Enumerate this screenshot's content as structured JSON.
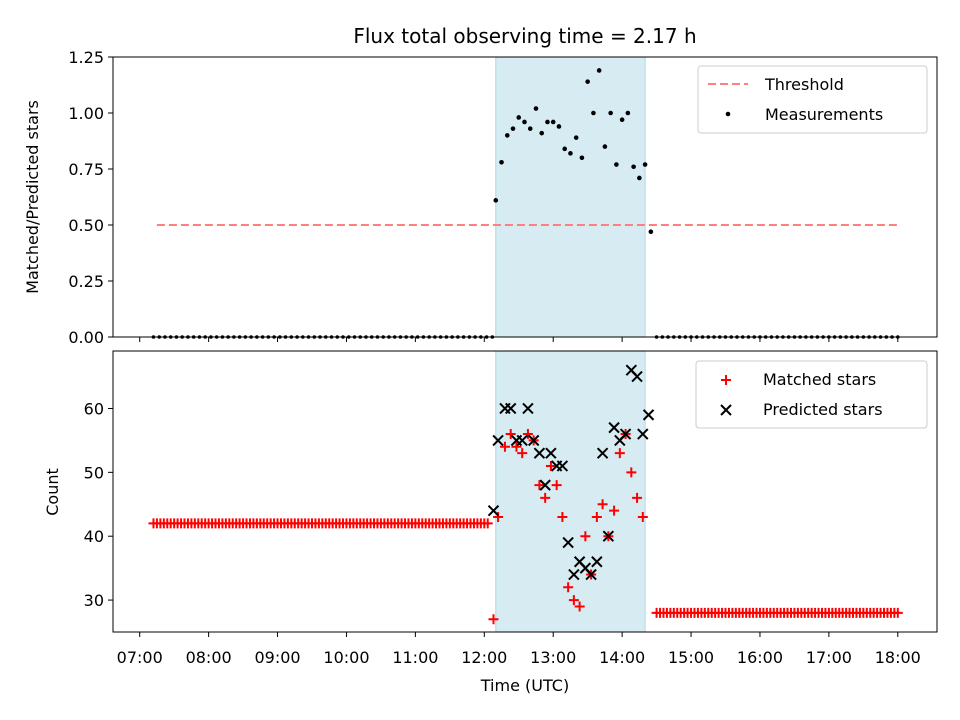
{
  "title": "Flux total observing time = 2.17 h",
  "colors": {
    "threshold": "#ff7f7f",
    "measurement": "#000000",
    "matched": "#ff0000",
    "predicted": "#000000",
    "shade": "#add8e6"
  },
  "chart_data": [
    {
      "type": "scatter",
      "name": "ratio-panel",
      "ylabel": "Matched/Predicted stars",
      "ylim": [
        0,
        1.25
      ],
      "yticks": [
        "0.00",
        "0.25",
        "0.50",
        "0.75",
        "1.00",
        "1.25"
      ],
      "shaded_interval": [
        "12:10",
        "14:20"
      ],
      "threshold": {
        "value": 0.5,
        "x_range": [
          "07:15",
          "18:00"
        ]
      },
      "legend": {
        "position": "top-right",
        "entries": [
          "Threshold",
          "Measurements"
        ]
      },
      "zero_series": {
        "x_start": "07:12",
        "x_end": "12:08",
        "step_minutes": 5,
        "x_start_2": "14:30",
        "x_end_2": "18:00",
        "value": 0
      },
      "measurements": [
        {
          "x": "12:10",
          "y": 0.61
        },
        {
          "x": "12:15",
          "y": 0.78
        },
        {
          "x": "12:20",
          "y": 0.9
        },
        {
          "x": "12:25",
          "y": 0.93
        },
        {
          "x": "12:30",
          "y": 0.98
        },
        {
          "x": "12:35",
          "y": 0.96
        },
        {
          "x": "12:40",
          "y": 0.93
        },
        {
          "x": "12:45",
          "y": 1.02
        },
        {
          "x": "12:50",
          "y": 0.91
        },
        {
          "x": "12:55",
          "y": 0.96
        },
        {
          "x": "13:00",
          "y": 0.96
        },
        {
          "x": "13:05",
          "y": 0.94
        },
        {
          "x": "13:10",
          "y": 0.84
        },
        {
          "x": "13:15",
          "y": 0.82
        },
        {
          "x": "13:20",
          "y": 0.89
        },
        {
          "x": "13:25",
          "y": 0.8
        },
        {
          "x": "13:30",
          "y": 1.14
        },
        {
          "x": "13:35",
          "y": 1.0
        },
        {
          "x": "13:40",
          "y": 1.19
        },
        {
          "x": "13:45",
          "y": 0.85
        },
        {
          "x": "13:50",
          "y": 1.0
        },
        {
          "x": "13:55",
          "y": 0.77
        },
        {
          "x": "14:00",
          "y": 0.97
        },
        {
          "x": "14:05",
          "y": 1.0
        },
        {
          "x": "14:10",
          "y": 0.76
        },
        {
          "x": "14:15",
          "y": 0.71
        },
        {
          "x": "14:20",
          "y": 0.77
        },
        {
          "x": "14:25",
          "y": 0.47
        }
      ]
    },
    {
      "type": "scatter",
      "name": "count-panel",
      "xlabel": "Time (UTC)",
      "ylabel": "Count",
      "ylim": [
        25,
        69
      ],
      "yticks": [
        "30",
        "40",
        "50",
        "60"
      ],
      "xticks": [
        "07:00",
        "08:00",
        "09:00",
        "10:00",
        "11:00",
        "12:00",
        "13:00",
        "14:00",
        "15:00",
        "16:00",
        "17:00",
        "18:00"
      ],
      "shaded_interval": [
        "12:10",
        "14:20"
      ],
      "legend": {
        "position": "top-right",
        "entries": [
          "Matched stars",
          "Predicted stars"
        ]
      },
      "flat_series": [
        {
          "x_start": "07:12",
          "x_end": "12:03",
          "step_minutes": 3,
          "value": 42
        },
        {
          "x_start": "14:30",
          "x_end": "18:00",
          "step_minutes": 3,
          "value": 28
        }
      ],
      "series": [
        {
          "name": "Matched stars",
          "points": [
            {
              "x": "12:08",
              "y": 27
            },
            {
              "x": "12:12",
              "y": 43
            },
            {
              "x": "12:18",
              "y": 54
            },
            {
              "x": "12:23",
              "y": 56
            },
            {
              "x": "12:28",
              "y": 54
            },
            {
              "x": "12:33",
              "y": 53
            },
            {
              "x": "12:38",
              "y": 56
            },
            {
              "x": "12:43",
              "y": 55
            },
            {
              "x": "12:48",
              "y": 48
            },
            {
              "x": "12:53",
              "y": 46
            },
            {
              "x": "12:58",
              "y": 51
            },
            {
              "x": "13:03",
              "y": 48
            },
            {
              "x": "13:08",
              "y": 43
            },
            {
              "x": "13:13",
              "y": 32
            },
            {
              "x": "13:18",
              "y": 30
            },
            {
              "x": "13:23",
              "y": 29
            },
            {
              "x": "13:28",
              "y": 40
            },
            {
              "x": "13:33",
              "y": 34
            },
            {
              "x": "13:38",
              "y": 43
            },
            {
              "x": "13:43",
              "y": 45
            },
            {
              "x": "13:48",
              "y": 40
            },
            {
              "x": "13:53",
              "y": 44
            },
            {
              "x": "13:58",
              "y": 53
            },
            {
              "x": "14:03",
              "y": 56
            },
            {
              "x": "14:08",
              "y": 50
            },
            {
              "x": "14:13",
              "y": 46
            },
            {
              "x": "14:18",
              "y": 43
            }
          ]
        },
        {
          "name": "Predicted stars",
          "points": [
            {
              "x": "12:08",
              "y": 44
            },
            {
              "x": "12:12",
              "y": 55
            },
            {
              "x": "12:18",
              "y": 60
            },
            {
              "x": "12:23",
              "y": 60
            },
            {
              "x": "12:28",
              "y": 55
            },
            {
              "x": "12:33",
              "y": 55
            },
            {
              "x": "12:38",
              "y": 60
            },
            {
              "x": "12:43",
              "y": 55
            },
            {
              "x": "12:48",
              "y": 53
            },
            {
              "x": "12:53",
              "y": 48
            },
            {
              "x": "12:58",
              "y": 53
            },
            {
              "x": "13:03",
              "y": 51
            },
            {
              "x": "13:08",
              "y": 51
            },
            {
              "x": "13:13",
              "y": 39
            },
            {
              "x": "13:18",
              "y": 34
            },
            {
              "x": "13:23",
              "y": 36
            },
            {
              "x": "13:28",
              "y": 35
            },
            {
              "x": "13:33",
              "y": 34
            },
            {
              "x": "13:38",
              "y": 36
            },
            {
              "x": "13:43",
              "y": 53
            },
            {
              "x": "13:48",
              "y": 40
            },
            {
              "x": "13:53",
              "y": 57
            },
            {
              "x": "13:58",
              "y": 55
            },
            {
              "x": "14:03",
              "y": 56
            },
            {
              "x": "14:08",
              "y": 66
            },
            {
              "x": "14:13",
              "y": 65
            },
            {
              "x": "14:18",
              "y": 56
            },
            {
              "x": "14:23",
              "y": 59
            }
          ]
        }
      ]
    }
  ]
}
